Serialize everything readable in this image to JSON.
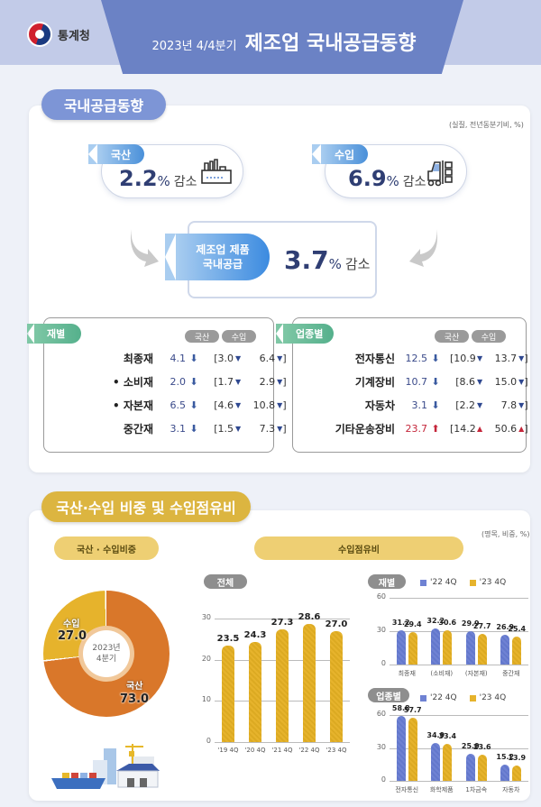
{
  "header": {
    "org": "통계청",
    "period": "2023년 4/4분기",
    "title": "제조업 국내공급동향"
  },
  "section1": {
    "title": "국내공급동향",
    "unit_note": "(실질, 전년동분기비, %)",
    "domestic": {
      "label": "국산",
      "value": "2.2",
      "pct": "%",
      "direction": "감소",
      "icon": "factory-icon"
    },
    "import": {
      "label": "수입",
      "value": "6.9",
      "pct": "%",
      "direction": "감소",
      "icon": "forklift-icon"
    },
    "total": {
      "label_line1": "제조업 제품",
      "label_line2": "국내공급",
      "value": "3.7",
      "pct": "%",
      "direction": "감소"
    },
    "col_headers": {
      "domestic": "국산",
      "import": "수입"
    },
    "by_goods": {
      "tag": "재별",
      "rows": [
        {
          "label": "최종재",
          "total": "4.1",
          "trend": "down",
          "domestic": "3.0",
          "import": "6.4"
        },
        {
          "label": "• 소비재",
          "total": "2.0",
          "trend": "down",
          "domestic": "1.7",
          "import": "2.9"
        },
        {
          "label": "• 자본재",
          "total": "6.5",
          "trend": "down",
          "domestic": "4.6",
          "import": "10.8"
        },
        {
          "label": "중간재",
          "total": "3.1",
          "trend": "down",
          "domestic": "1.5",
          "import": "7.3"
        }
      ]
    },
    "by_industry": {
      "tag": "업종별",
      "rows": [
        {
          "label": "전자통신",
          "total": "12.5",
          "trend": "down",
          "domestic": "10.9",
          "import": "13.7"
        },
        {
          "label": "기계장비",
          "total": "10.7",
          "trend": "down",
          "domestic": "8.6",
          "import": "15.0"
        },
        {
          "label": "자동차",
          "total": "3.1",
          "trend": "down",
          "domestic": "2.2",
          "import": "7.8"
        },
        {
          "label": "기타운송장비",
          "total": "23.7",
          "trend": "up",
          "domestic": "14.2",
          "import": "50.6"
        }
      ]
    }
  },
  "section2": {
    "title": "국산·수입 비중 및 수입점유비",
    "unit_note": "(명목, 비중, %)",
    "share_pill": "국산 · 수입비중",
    "import_share_pill": "수입점유비",
    "donut": {
      "center_line1": "2023년",
      "center_line2": "4분기",
      "import_label": "수입",
      "import_value": "27.0",
      "domestic_label": "국산",
      "domestic_value": "73.0"
    },
    "total_tag": "전체",
    "goods_tag": "재별",
    "industry_tag": "업종별",
    "legend_prev": "'22 4Q",
    "legend_curr": "'23 4Q"
  },
  "colors": {
    "header_band": "#c2cbe8",
    "header_tab": "#6b82c5",
    "section1_pill": "#7d95d6",
    "section2_pill": "#dcb540",
    "domestic_orange": "#d9772a",
    "import_yellow": "#e6b32c",
    "bar_blue": "#6f82d3",
    "down_blue": "#3a5aa0",
    "up_red": "#c4263a"
  },
  "chart_data": [
    {
      "type": "pie",
      "title": "국산 · 수입비중 (2023년 4분기)",
      "categories": [
        "국산",
        "수입"
      ],
      "values": [
        73.0,
        27.0
      ]
    },
    {
      "type": "bar",
      "title": "수입점유비 - 전체",
      "categories": [
        "'19 4Q",
        "'20 4Q",
        "'21 4Q",
        "'22 4Q",
        "'23 4Q"
      ],
      "values": [
        23.5,
        24.3,
        27.3,
        28.6,
        27.0
      ],
      "yticks": [
        0,
        10,
        20,
        30
      ],
      "ylim": [
        0,
        30
      ],
      "grid": true
    },
    {
      "type": "bar",
      "title": "수입점유비 - 재별",
      "categories": [
        "최종재",
        "(소비재)",
        "(자본재)",
        "중간재"
      ],
      "series": [
        {
          "name": "'22 4Q",
          "values": [
            31.2,
            32.2,
            29.9,
            26.9
          ]
        },
        {
          "name": "'23 4Q",
          "values": [
            29.4,
            30.6,
            27.7,
            25.4
          ]
        }
      ],
      "yticks": [
        0,
        30,
        60
      ],
      "ylim": [
        0,
        60
      ],
      "legend_position": "top",
      "grid": true
    },
    {
      "type": "bar",
      "title": "수입점유비 - 업종별",
      "categories": [
        "전자통신",
        "화학제품",
        "1차금속",
        "자동차"
      ],
      "series": [
        {
          "name": "'22 4Q",
          "values": [
            58.8,
            34.9,
            25.0,
            15.2
          ]
        },
        {
          "name": "'23 4Q",
          "values": [
            57.7,
            33.4,
            23.6,
            13.9
          ]
        }
      ],
      "yticks": [
        0,
        30,
        60
      ],
      "ylim": [
        0,
        60
      ],
      "legend_position": "top",
      "grid": true
    }
  ]
}
